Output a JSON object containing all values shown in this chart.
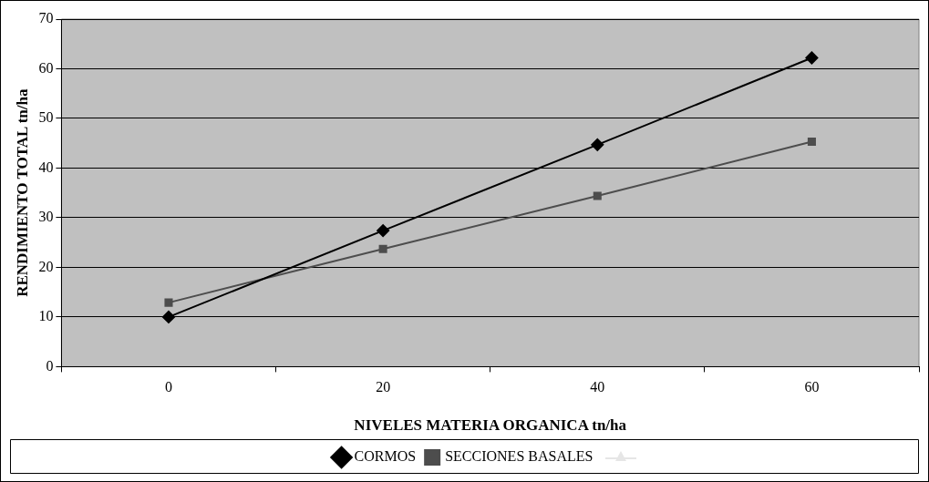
{
  "chart_data": {
    "type": "line",
    "xlabel": "NIVELES MATERIA ORGANICA tn/ha",
    "ylabel": "RENDIMIENTO TOTAL tn/ha",
    "categories": [
      "0",
      "20",
      "40",
      "60"
    ],
    "series": [
      {
        "name": "CORMOS",
        "color": "#000000",
        "marker": "diamond",
        "values": [
          10.0,
          27.4,
          44.7,
          62.2
        ]
      },
      {
        "name": "SECCIONES BASALES",
        "color": "#4d4d4d",
        "marker": "square",
        "values": [
          12.9,
          23.7,
          34.4,
          45.3
        ]
      }
    ],
    "ylim": [
      0,
      70
    ],
    "yticks": [
      0,
      10,
      20,
      30,
      40,
      50,
      60,
      70
    ],
    "grid": "y",
    "legend": "bottom"
  }
}
